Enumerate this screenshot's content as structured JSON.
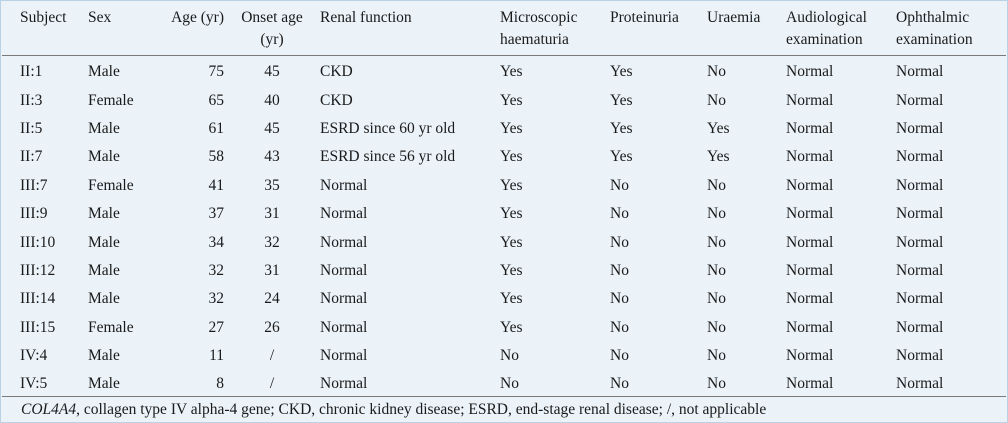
{
  "headers": [
    [
      "Subject"
    ],
    [
      "Sex"
    ],
    [
      "Age (yr)"
    ],
    [
      "Onset age",
      "(yr)"
    ],
    [
      "Renal function"
    ],
    [
      "Microscopic",
      "haematuria"
    ],
    [
      "Proteinuria"
    ],
    [
      "Uraemia"
    ],
    [
      "Audiological",
      "examination"
    ],
    [
      "Ophthalmic",
      "examination"
    ]
  ],
  "rows": [
    [
      "II:1",
      "Male",
      "75",
      "45",
      "CKD",
      "Yes",
      "Yes",
      "No",
      "Normal",
      "Normal"
    ],
    [
      "II:3",
      "Female",
      "65",
      "40",
      "CKD",
      "Yes",
      "Yes",
      "No",
      "Normal",
      "Normal"
    ],
    [
      "II:5",
      "Male",
      "61",
      "45",
      "ESRD since 60 yr old",
      "Yes",
      "Yes",
      "Yes",
      "Normal",
      "Normal"
    ],
    [
      "II:7",
      "Male",
      "58",
      "43",
      "ESRD since 56 yr old",
      "Yes",
      "Yes",
      "Yes",
      "Normal",
      "Normal"
    ],
    [
      "III:7",
      "Female",
      "41",
      "35",
      "Normal",
      "Yes",
      "No",
      "No",
      "Normal",
      "Normal"
    ],
    [
      "III:9",
      "Male",
      "37",
      "31",
      "Normal",
      "Yes",
      "No",
      "No",
      "Normal",
      "Normal"
    ],
    [
      "III:10",
      "Male",
      "34",
      "32",
      "Normal",
      "Yes",
      "No",
      "No",
      "Normal",
      "Normal"
    ],
    [
      "III:12",
      "Male",
      "32",
      "31",
      "Normal",
      "Yes",
      "No",
      "No",
      "Normal",
      "Normal"
    ],
    [
      "III:14",
      "Male",
      "32",
      "24",
      "Normal",
      "Yes",
      "No",
      "No",
      "Normal",
      "Normal"
    ],
    [
      "III:15",
      "Female",
      "27",
      "26",
      "Normal",
      "Yes",
      "No",
      "No",
      "Normal",
      "Normal"
    ],
    [
      "IV:4",
      "Male",
      "11",
      "/",
      "Normal",
      "No",
      "No",
      "No",
      "Normal",
      "Normal"
    ],
    [
      "IV:5",
      "Male",
      "8",
      "/",
      "Normal",
      "No",
      "No",
      "No",
      "Normal",
      "Normal"
    ]
  ],
  "footnote": {
    "gene": "COL4A4",
    "text": ", collagen type IV alpha-4 gene; CKD, chronic kidney disease; ESRD, end-stage renal disease; /, not applicable"
  }
}
